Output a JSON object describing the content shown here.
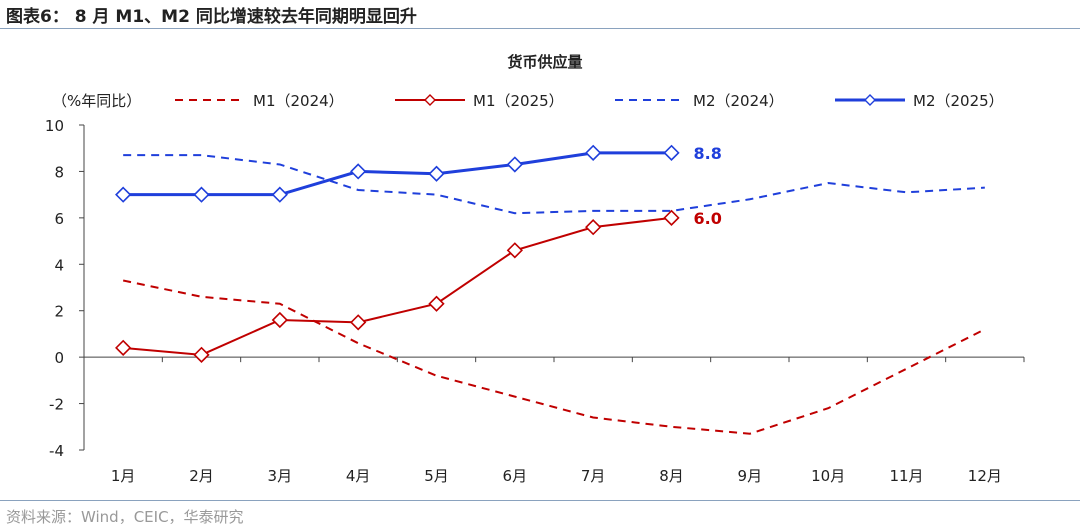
{
  "figure": {
    "title": "图表6： 8 月 M1、M2 同比增速较去年同期明显回升",
    "source": "资料来源：Wind，CEIC，华泰研究"
  },
  "chart_data": {
    "type": "line",
    "title": "货币供应量",
    "ylabel": "（%年同比）",
    "xlabel": "",
    "categories": [
      "1月",
      "2月",
      "3月",
      "4月",
      "5月",
      "6月",
      "7月",
      "8月",
      "9月",
      "10月",
      "11月",
      "12月"
    ],
    "ylim": [
      -4,
      10
    ],
    "yticks": [
      -4,
      -2,
      0,
      2,
      4,
      6,
      8,
      10
    ],
    "grid": false,
    "legend": "top",
    "series": [
      {
        "name": "M1（2024）",
        "color": "#c00000",
        "style": "dashed",
        "marker": "none",
        "values": [
          3.3,
          2.6,
          2.3,
          0.6,
          -0.8,
          -1.7,
          -2.6,
          -3.0,
          -3.3,
          -2.2,
          -0.5,
          1.2
        ]
      },
      {
        "name": "M1（2025）",
        "color": "#c00000",
        "style": "solid",
        "marker": "diamond-open",
        "values": [
          0.4,
          0.1,
          1.6,
          1.5,
          2.3,
          4.6,
          5.6,
          6.0,
          null,
          null,
          null,
          null
        ],
        "end_label": "6.0"
      },
      {
        "name": "M2（2024）",
        "color": "#1f3fdb",
        "style": "dashed",
        "marker": "none",
        "values": [
          8.7,
          8.7,
          8.3,
          7.2,
          7.0,
          6.2,
          6.3,
          6.3,
          6.8,
          7.5,
          7.1,
          7.3
        ]
      },
      {
        "name": "M2（2025）",
        "color": "#1f3fdb",
        "style": "solid-thick",
        "marker": "diamond-open",
        "values": [
          7.0,
          7.0,
          7.0,
          8.0,
          7.9,
          8.3,
          8.8,
          8.8,
          null,
          null,
          null,
          null
        ],
        "end_label": "8.8"
      }
    ]
  }
}
